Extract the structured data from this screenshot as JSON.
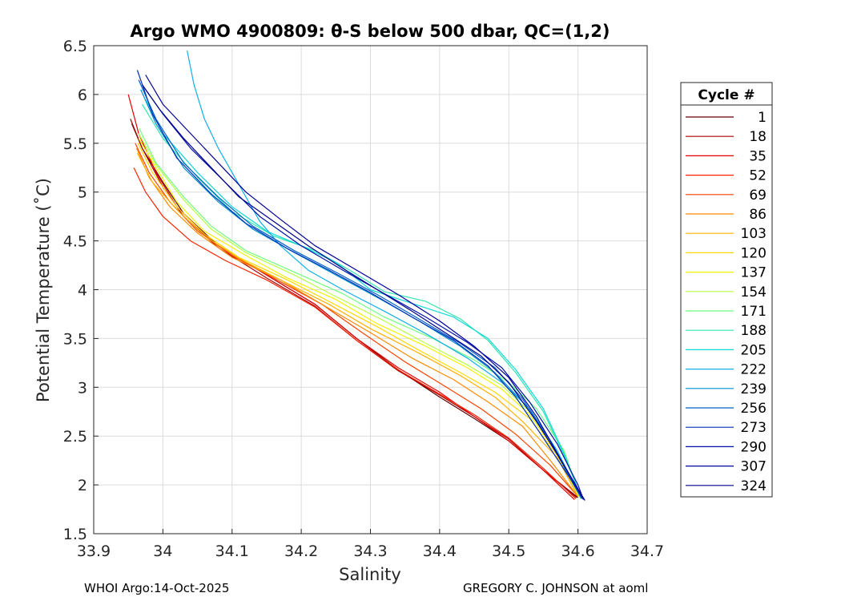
{
  "chart_data": {
    "type": "line",
    "title": "Argo WMO 4900809: θ-S below 500 dbar,  QC=(1,2)",
    "xlabel": "Salinity",
    "ylabel": "Potential Temperature (˚C)",
    "xlim": [
      33.9,
      34.7
    ],
    "ylim": [
      1.5,
      6.5
    ],
    "xticks": [
      33.9,
      34.0,
      34.1,
      34.2,
      34.3,
      34.4,
      34.5,
      34.6,
      34.7
    ],
    "xtick_labels": [
      "33.9",
      "34",
      "34.1",
      "34.2",
      "34.3",
      "34.4",
      "34.5",
      "34.6",
      "34.7"
    ],
    "yticks": [
      1.5,
      2.0,
      2.5,
      3.0,
      3.5,
      4.0,
      4.5,
      5.0,
      5.5,
      6.0,
      6.5
    ],
    "ytick_labels": [
      "1.5",
      "2",
      "2.5",
      "3",
      "3.5",
      "4",
      "4.5",
      "5",
      "5.5",
      "6",
      "6.5"
    ],
    "grid": true,
    "legend": {
      "title": "Cycle #",
      "placement": "right-outside",
      "entries": [
        "1",
        "18",
        "35",
        "52",
        "69",
        "86",
        "103",
        "120",
        "137",
        "154",
        "171",
        "188",
        "205",
        "222",
        "239",
        "256",
        "273",
        "290",
        "307",
        "324"
      ],
      "colors": [
        "#600000",
        "#a80000",
        "#e60000",
        "#ff2200",
        "#ff4400",
        "#ff8a00",
        "#ffb000",
        "#ffd800",
        "#f2f200",
        "#b8ff40",
        "#70ff80",
        "#30e6b0",
        "#10d8d8",
        "#10b0e8",
        "#0090d0",
        "#0060c8",
        "#0030b8",
        "#0010a8",
        "#00009a",
        "#00008c"
      ]
    },
    "series": [
      {
        "name": "1",
        "x": [
          33.955,
          33.97,
          34.0,
          34.03,
          34.08,
          34.15,
          34.22,
          34.28,
          34.34,
          34.4,
          34.45,
          34.5,
          34.55,
          34.6
        ],
        "y": [
          5.7,
          5.45,
          5.1,
          4.78,
          4.45,
          4.15,
          3.85,
          3.5,
          3.18,
          2.9,
          2.68,
          2.45,
          2.15,
          1.87
        ]
      },
      {
        "name": "18",
        "x": [
          33.953,
          33.97,
          34.0,
          34.03,
          34.08,
          34.15,
          34.22,
          34.28,
          34.34,
          34.4,
          34.45,
          34.5,
          34.55,
          34.598
        ],
        "y": [
          5.75,
          5.45,
          5.05,
          4.75,
          4.43,
          4.12,
          3.83,
          3.48,
          3.17,
          2.92,
          2.7,
          2.47,
          2.15,
          1.87
        ]
      },
      {
        "name": "35",
        "x": [
          33.95,
          33.965,
          33.99,
          34.02,
          34.07,
          34.15,
          34.22,
          34.28,
          34.34,
          34.4,
          34.45,
          34.5,
          34.55,
          34.595
        ],
        "y": [
          6.0,
          5.6,
          5.2,
          4.85,
          4.5,
          4.15,
          3.85,
          3.5,
          3.2,
          2.95,
          2.7,
          2.45,
          2.15,
          1.85
        ]
      },
      {
        "name": "52",
        "x": [
          33.958,
          33.975,
          34.0,
          34.04,
          34.09,
          34.15,
          34.22,
          34.28,
          34.34,
          34.4,
          34.45,
          34.5,
          34.55,
          34.597
        ],
        "y": [
          5.25,
          5.0,
          4.75,
          4.5,
          4.3,
          4.1,
          3.82,
          3.48,
          3.18,
          2.93,
          2.72,
          2.48,
          2.17,
          1.86
        ]
      },
      {
        "name": "69",
        "x": [
          33.96,
          33.98,
          34.01,
          34.05,
          34.1,
          34.16,
          34.23,
          34.29,
          34.35,
          34.41,
          34.46,
          34.51,
          34.56,
          34.6
        ],
        "y": [
          5.5,
          5.2,
          4.9,
          4.6,
          4.35,
          4.12,
          3.85,
          3.55,
          3.26,
          3.0,
          2.78,
          2.52,
          2.2,
          1.88
        ]
      },
      {
        "name": "86",
        "x": [
          33.962,
          33.98,
          34.01,
          34.05,
          34.1,
          34.17,
          34.23,
          34.3,
          34.36,
          34.42,
          34.47,
          34.52,
          34.56,
          34.6
        ],
        "y": [
          5.45,
          5.15,
          4.85,
          4.58,
          4.33,
          4.1,
          3.85,
          3.56,
          3.3,
          3.08,
          2.85,
          2.6,
          2.25,
          1.88
        ]
      },
      {
        "name": "103",
        "x": [
          33.963,
          33.985,
          34.02,
          34.06,
          34.11,
          34.17,
          34.24,
          34.3,
          34.37,
          34.43,
          34.48,
          34.52,
          34.57,
          34.6
        ],
        "y": [
          5.4,
          5.1,
          4.82,
          4.55,
          4.32,
          4.1,
          3.85,
          3.6,
          3.35,
          3.12,
          2.9,
          2.65,
          2.28,
          1.88
        ]
      },
      {
        "name": "120",
        "x": [
          33.964,
          33.985,
          34.02,
          34.06,
          34.11,
          34.18,
          34.24,
          34.31,
          34.37,
          34.43,
          34.48,
          34.53,
          34.57,
          34.602
        ],
        "y": [
          5.5,
          5.2,
          4.85,
          4.57,
          4.33,
          4.1,
          3.88,
          3.62,
          3.38,
          3.15,
          2.95,
          2.68,
          2.3,
          1.88
        ]
      },
      {
        "name": "137",
        "x": [
          33.965,
          33.99,
          34.02,
          34.06,
          34.12,
          34.18,
          34.25,
          34.31,
          34.38,
          34.44,
          34.49,
          34.53,
          34.57,
          34.603
        ],
        "y": [
          5.55,
          5.25,
          4.9,
          4.6,
          4.35,
          4.12,
          3.9,
          3.65,
          3.42,
          3.2,
          2.98,
          2.72,
          2.32,
          1.87
        ]
      },
      {
        "name": "154",
        "x": [
          33.965,
          33.99,
          34.03,
          34.07,
          34.12,
          34.19,
          34.25,
          34.32,
          34.38,
          34.44,
          34.49,
          34.53,
          34.57,
          34.603
        ],
        "y": [
          5.6,
          5.28,
          4.92,
          4.62,
          4.38,
          4.15,
          3.93,
          3.68,
          3.45,
          3.23,
          3.02,
          2.75,
          2.33,
          1.87
        ]
      },
      {
        "name": "171",
        "x": [
          33.966,
          33.99,
          34.03,
          34.07,
          34.12,
          34.19,
          34.26,
          34.32,
          34.39,
          34.45,
          34.5,
          34.54,
          34.58,
          34.604
        ],
        "y": [
          5.65,
          5.3,
          4.95,
          4.65,
          4.4,
          4.18,
          3.96,
          3.72,
          3.5,
          3.28,
          3.05,
          2.78,
          2.35,
          1.86
        ]
      },
      {
        "name": "188",
        "x": [
          33.97,
          34.0,
          34.05,
          34.1,
          34.16,
          34.22,
          34.27,
          34.32,
          34.38,
          34.43,
          34.47,
          34.51,
          34.55,
          34.58,
          34.605
        ],
        "y": [
          5.9,
          5.55,
          5.15,
          4.8,
          4.55,
          4.4,
          4.2,
          3.98,
          3.88,
          3.7,
          3.48,
          3.15,
          2.75,
          2.3,
          1.87
        ]
      },
      {
        "name": "205",
        "x": [
          33.975,
          34.0,
          34.05,
          34.1,
          34.15,
          34.2,
          34.25,
          34.3,
          34.36,
          34.42,
          34.47,
          34.51,
          34.55,
          34.58,
          34.605
        ],
        "y": [
          5.95,
          5.6,
          5.2,
          4.85,
          4.6,
          4.45,
          4.28,
          4.0,
          3.86,
          3.72,
          3.5,
          3.18,
          2.78,
          2.32,
          1.86
        ]
      },
      {
        "name": "222",
        "x": [
          34.035,
          34.045,
          34.06,
          34.08,
          34.1,
          34.12,
          34.14,
          34.17,
          34.21,
          34.26,
          34.32,
          34.38,
          34.44,
          34.49,
          34.53,
          34.57,
          34.605
        ],
        "y": [
          6.45,
          6.1,
          5.75,
          5.45,
          5.2,
          4.95,
          4.7,
          4.45,
          4.2,
          4.0,
          3.78,
          3.55,
          3.3,
          3.05,
          2.78,
          2.35,
          1.86
        ]
      },
      {
        "name": "239",
        "x": [
          33.968,
          33.99,
          34.03,
          34.08,
          34.13,
          34.19,
          34.25,
          34.31,
          34.37,
          34.43,
          34.48,
          34.52,
          34.56,
          34.59,
          34.605
        ],
        "y": [
          6.05,
          5.7,
          5.25,
          4.9,
          4.62,
          4.38,
          4.15,
          3.92,
          3.68,
          3.42,
          3.15,
          2.85,
          2.45,
          2.05,
          1.86
        ]
      },
      {
        "name": "256",
        "x": [
          33.965,
          33.99,
          34.03,
          34.08,
          34.13,
          34.19,
          34.25,
          34.31,
          34.37,
          34.43,
          34.48,
          34.52,
          34.56,
          34.59,
          34.606
        ],
        "y": [
          6.15,
          5.75,
          5.3,
          4.95,
          4.65,
          4.4,
          4.18,
          3.95,
          3.7,
          3.45,
          3.2,
          2.88,
          2.45,
          2.05,
          1.86
        ]
      },
      {
        "name": "273",
        "x": [
          33.963,
          33.985,
          34.02,
          34.07,
          34.12,
          34.18,
          34.24,
          34.3,
          34.36,
          34.42,
          34.47,
          34.51,
          34.55,
          34.59,
          34.607
        ],
        "y": [
          6.25,
          5.8,
          5.35,
          4.98,
          4.68,
          4.42,
          4.2,
          3.97,
          3.72,
          3.48,
          3.22,
          2.9,
          2.48,
          2.05,
          1.86
        ]
      },
      {
        "name": "290",
        "x": [
          33.97,
          34.0,
          34.04,
          34.09,
          34.14,
          34.2,
          34.26,
          34.32,
          34.38,
          34.44,
          34.49,
          34.53,
          34.57,
          34.6,
          34.608
        ],
        "y": [
          6.1,
          5.8,
          5.45,
          5.1,
          4.75,
          4.45,
          4.2,
          3.96,
          3.72,
          3.46,
          3.2,
          2.85,
          2.42,
          2.0,
          1.85
        ]
      },
      {
        "name": "307",
        "x": [
          33.975,
          34.0,
          34.04,
          34.08,
          34.12,
          34.17,
          34.22,
          34.28,
          34.34,
          34.4,
          34.45,
          34.5,
          34.54,
          34.58,
          34.608
        ],
        "y": [
          6.2,
          5.9,
          5.6,
          5.3,
          5.0,
          4.72,
          4.45,
          4.2,
          3.95,
          3.68,
          3.42,
          3.1,
          2.7,
          2.2,
          1.85
        ]
      },
      {
        "name": "324",
        "x": [
          33.97,
          33.995,
          34.03,
          34.07,
          34.11,
          34.16,
          34.21,
          34.26,
          34.31,
          34.36,
          34.41,
          34.46,
          34.5,
          34.54,
          34.58,
          34.61
        ],
        "y": [
          6.1,
          5.85,
          5.55,
          5.25,
          4.95,
          4.7,
          4.45,
          4.22,
          4.0,
          3.78,
          3.55,
          3.32,
          3.05,
          2.65,
          2.2,
          1.84
        ]
      }
    ]
  },
  "footer": {
    "left": "WHOI Argo:14-Oct-2025",
    "right": "GREGORY C. JOHNSON at aoml"
  }
}
